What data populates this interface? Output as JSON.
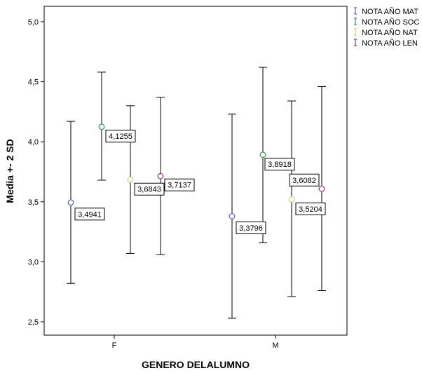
{
  "chart_data": {
    "type": "errorbar",
    "xlabel": "GENERO DELALUMNO",
    "ylabel": "Media +- 2 SD",
    "categories": [
      "F",
      "M"
    ],
    "ylim": [
      2.45,
      5.1
    ],
    "yticks": [
      "2,5",
      "3,0",
      "3,5",
      "4,0",
      "4,5",
      "5,0"
    ],
    "ytick_values": [
      2.5,
      3.0,
      3.5,
      4.0,
      4.5,
      5.0
    ],
    "legend_position": "top-right",
    "grid": false,
    "series": [
      {
        "name": "NOTA AÑO MAT",
        "color": "#5f6fc0",
        "means": [
          3.4941,
          3.3796
        ],
        "mean_labels": [
          "3,4941",
          "3,3796"
        ],
        "upper": [
          4.17,
          4.23
        ],
        "lower": [
          2.82,
          2.53
        ]
      },
      {
        "name": "NOTA AÑO SOC",
        "color": "#3aa05a",
        "means": [
          4.1255,
          3.8918
        ],
        "mean_labels": [
          "4,1255",
          "3,8918"
        ],
        "upper": [
          4.58,
          4.62
        ],
        "lower": [
          3.68,
          3.16
        ]
      },
      {
        "name": "NOTA AÑO NAT",
        "color": "#d8d38a",
        "means": [
          3.6843,
          3.5204
        ],
        "mean_labels": [
          "3,6843",
          "3,5204"
        ],
        "upper": [
          4.3,
          4.34
        ],
        "lower": [
          3.07,
          2.71
        ]
      },
      {
        "name": "NOTA AÑO LEN",
        "color": "#9a3d9a",
        "means": [
          3.7137,
          3.6082
        ],
        "mean_labels": [
          "3,7137",
          "3,6082"
        ],
        "upper": [
          4.37,
          4.46
        ],
        "lower": [
          3.06,
          2.76
        ]
      }
    ]
  }
}
